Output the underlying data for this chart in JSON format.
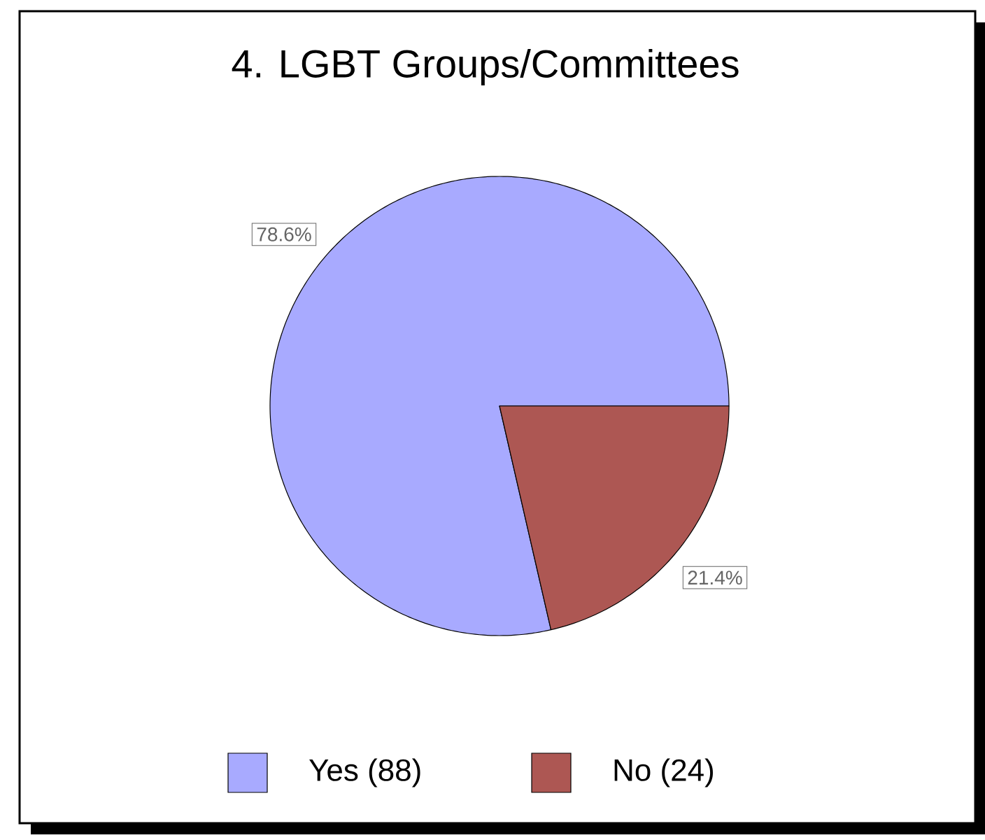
{
  "chart_data": {
    "type": "pie",
    "title": "4. LGBT Groups/Committees",
    "categories": [
      "Yes (88)",
      "No (24)"
    ],
    "values": [
      78.6,
      21.4
    ],
    "value_labels": [
      "78.6%",
      "21.4%"
    ],
    "colors": [
      "#a8aaff",
      "#ad5753"
    ],
    "legend": "bottom"
  }
}
